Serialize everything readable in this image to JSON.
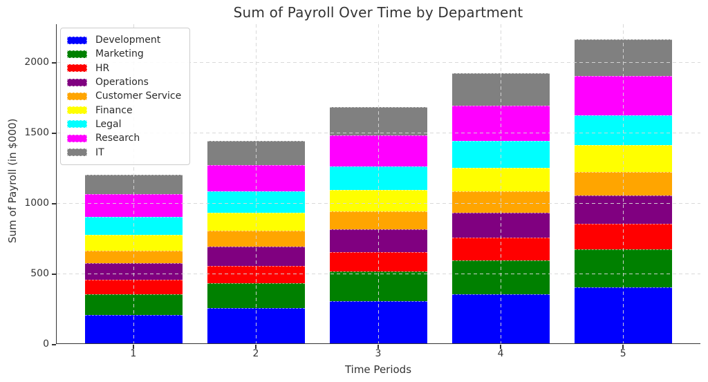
{
  "chart_data": {
    "type": "bar",
    "stacked": true,
    "title": "Sum of Payroll Over Time by Department",
    "xlabel": "Time Periods",
    "ylabel": "Sum of Payroll (in $000)",
    "categories": [
      "1",
      "2",
      "3",
      "4",
      "5"
    ],
    "series": [
      {
        "name": "Development",
        "color": "#0000ff",
        "values": [
          200,
          250,
          300,
          350,
          400
        ]
      },
      {
        "name": "Marketing",
        "color": "#008000",
        "values": [
          150,
          180,
          210,
          240,
          270
        ]
      },
      {
        "name": "HR",
        "color": "#ff0000",
        "values": [
          100,
          120,
          140,
          160,
          180
        ]
      },
      {
        "name": "Operations",
        "color": "#800080",
        "values": [
          120,
          140,
          160,
          180,
          200
        ]
      },
      {
        "name": "Customer Service",
        "color": "#ffa500",
        "values": [
          90,
          110,
          130,
          150,
          170
        ]
      },
      {
        "name": "Finance",
        "color": "#ffff00",
        "values": [
          110,
          130,
          150,
          170,
          190
        ]
      },
      {
        "name": "Legal",
        "color": "#00ffff",
        "values": [
          130,
          150,
          170,
          190,
          210
        ]
      },
      {
        "name": "Research",
        "color": "#ff00ff",
        "values": [
          160,
          190,
          220,
          250,
          280
        ]
      },
      {
        "name": "IT",
        "color": "#808080",
        "values": [
          140,
          170,
          200,
          230,
          260
        ]
      }
    ],
    "stack_totals": [
      1200,
      1440,
      1680,
      1920,
      2160
    ],
    "yticks": [
      0,
      500,
      1000,
      1500,
      2000
    ],
    "ylim": [
      0,
      2270
    ],
    "grid": true,
    "grid_style": "dashed",
    "grid_color": "#d7d7d7",
    "legend_position": "upper left",
    "spine_color": "#333333",
    "background_color": "#ffffff"
  }
}
